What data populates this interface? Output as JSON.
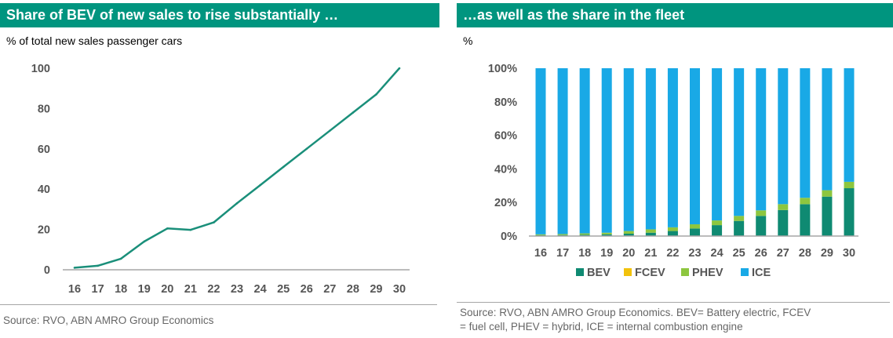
{
  "colors": {
    "header_bg": "#00957f",
    "line": "#1a8f7a",
    "bev": "#0f8a72",
    "fcev": "#f2c20c",
    "phev": "#8dc63f",
    "ice": "#19a9e6",
    "axis": "#a6a6a6"
  },
  "left": {
    "title": "Share of BEV of new sales to rise substantially …",
    "subtitle": "% of total new sales passenger cars",
    "source": "Source: RVO, ABN AMRO Group Economics"
  },
  "right": {
    "title": "…as well as the share in the fleet",
    "subtitle": "%",
    "source_line1": "Source: RVO, ABN AMRO Group Economics. BEV= Battery electric, FCEV",
    "source_line2": "= fuel cell, PHEV = hybrid, ICE = internal combustion engine"
  },
  "chart_data": [
    {
      "type": "line",
      "title": "Share of BEV of new sales to rise substantially …",
      "ylabel": "% of total new sales passenger cars",
      "x": [
        "16",
        "17",
        "18",
        "19",
        "20",
        "21",
        "22",
        "23",
        "24",
        "25",
        "26",
        "27",
        "28",
        "29",
        "30"
      ],
      "series": [
        {
          "values": [
            1,
            2,
            5.5,
            14,
            20.5,
            19.8,
            23.5,
            33,
            42,
            51,
            60,
            69,
            78,
            87,
            100
          ]
        }
      ],
      "yticks": [
        0,
        20,
        40,
        60,
        80,
        100
      ],
      "ylim": [
        0,
        100
      ],
      "grid": false
    },
    {
      "type": "bar",
      "stacked": true,
      "title": "…as well as the share in the fleet",
      "ylabel": "%",
      "categories": [
        "16",
        "17",
        "18",
        "19",
        "20",
        "21",
        "22",
        "23",
        "24",
        "25",
        "26",
        "27",
        "28",
        "29",
        "30"
      ],
      "series": [
        {
          "name": "BEV",
          "values": [
            0.5,
            0.6,
            0.8,
            1.0,
            1.4,
            2.0,
            3.0,
            4.5,
            6.5,
            9.0,
            12.0,
            15.5,
            19.0,
            23.5,
            28.5
          ]
        },
        {
          "name": "FCEV",
          "values": [
            0,
            0,
            0,
            0,
            0,
            0,
            0,
            0,
            0,
            0,
            0,
            0,
            0,
            0,
            0
          ]
        },
        {
          "name": "PHEV",
          "values": [
            0.5,
            0.6,
            0.8,
            1.0,
            1.6,
            2.0,
            2.2,
            2.5,
            2.8,
            3.0,
            3.3,
            3.5,
            3.8,
            3.8,
            3.8
          ]
        },
        {
          "name": "ICE",
          "values": [
            99.0,
            98.8,
            98.4,
            98.0,
            97.0,
            96.0,
            94.8,
            93.0,
            90.7,
            88.0,
            84.7,
            81.0,
            77.2,
            72.7,
            67.7
          ]
        }
      ],
      "yticks": [
        "0%",
        "20%",
        "40%",
        "60%",
        "80%",
        "100%"
      ],
      "ylim": [
        0,
        100
      ],
      "legend_position": "bottom",
      "grid": false
    }
  ]
}
